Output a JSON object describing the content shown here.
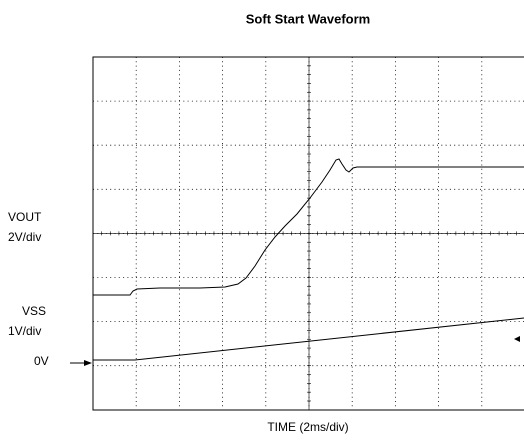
{
  "title": "Soft Start Waveform",
  "labels": {
    "vout": "VOUT",
    "vout_scale": "2V/div",
    "vss": "VSS",
    "vss_scale": "1V/div",
    "zero": "0V",
    "time": "TIME (2ms/div)"
  }
}
